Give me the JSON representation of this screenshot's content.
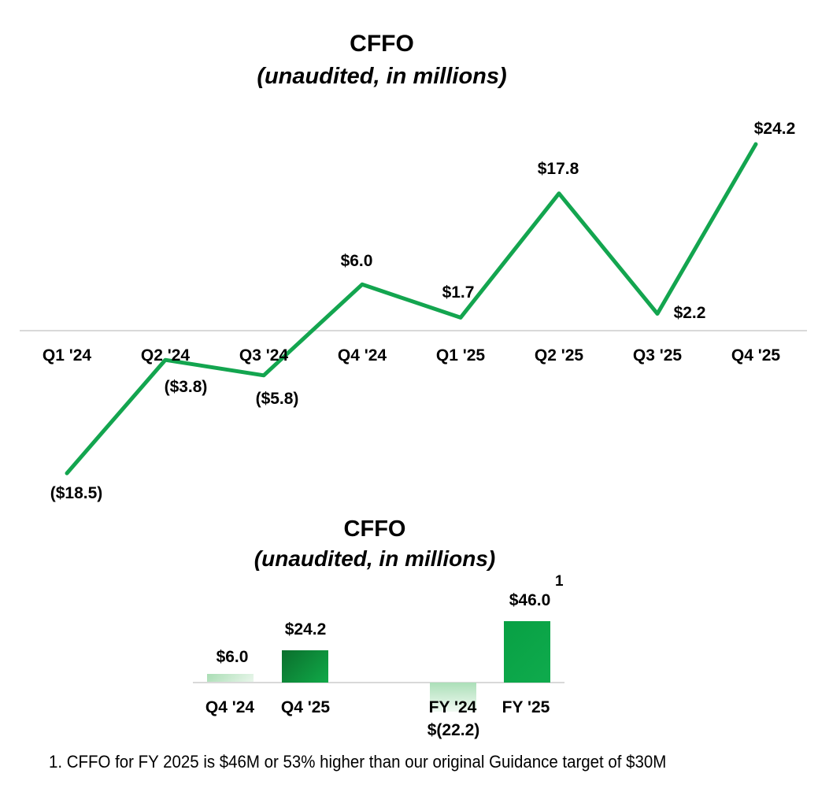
{
  "footnote": "1. CFFO for FY 2025 is $46M or 53% higher than our original Guidance target of $30M",
  "chart_data": [
    {
      "type": "line",
      "title": "CFFO",
      "subtitle": "(unaudited, in millions)",
      "categories": [
        "Q1 '24",
        "Q2 '24",
        "Q3 '24",
        "Q4 '24",
        "Q1 '25",
        "Q2 '25",
        "Q3 '25",
        "Q4 '25"
      ],
      "values": [
        -18.5,
        -3.8,
        -5.8,
        6.0,
        1.7,
        17.8,
        2.2,
        24.2
      ],
      "data_labels": [
        "($18.5)",
        "($3.8)",
        "($5.8)",
        "$6.0",
        "$1.7",
        "$17.8",
        "$2.2",
        "$24.2"
      ],
      "line_color": "#13a54f",
      "axis_color": "#d9d9d9",
      "grid": false,
      "legend": "none",
      "ylim": [
        -24,
        28
      ]
    },
    {
      "type": "bar",
      "title": "CFFO",
      "subtitle": "(unaudited, in millions)",
      "categories": [
        "Q4 '24",
        "Q4 '25",
        "FY '24",
        "FY '25"
      ],
      "values": [
        6.0,
        24.2,
        -22.2,
        46.0
      ],
      "data_labels": [
        "$6.0",
        "$24.2",
        "$(22.2)",
        "$46.0"
      ],
      "footnote_marker": "1",
      "bar_colors": [
        {
          "from": "#a9ddb4",
          "to": "#e9f6eb"
        },
        {
          "from": "#0b6f2d",
          "to": "#10a948"
        },
        {
          "from": "#abdfb8",
          "to": "#f2faf3"
        },
        {
          "from": "#08a044",
          "to": "#0fab4d"
        }
      ],
      "axis_color": "#d9d9d9",
      "ylim": [
        -25,
        50
      ]
    }
  ]
}
